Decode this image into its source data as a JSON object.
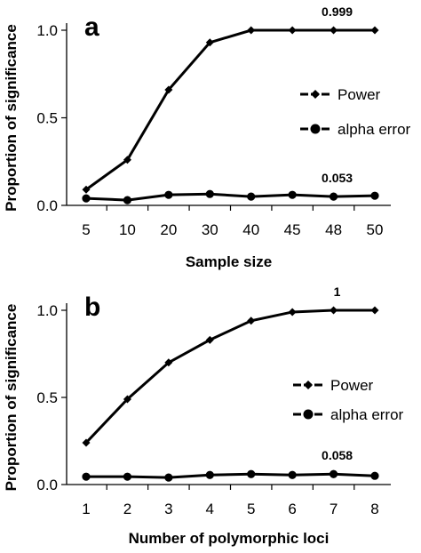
{
  "chart_data": [
    {
      "type": "line",
      "panel_label": "a",
      "xlabel": "Sample size",
      "ylabel": "Proportion of significance",
      "categories": [
        "5",
        "10",
        "20",
        "30",
        "40",
        "45",
        "48",
        "50"
      ],
      "ylim": [
        0,
        1.0
      ],
      "yticks": [
        "0.0",
        "0.5",
        "1.0"
      ],
      "grid": false,
      "legend_position": "right-middle",
      "series": [
        {
          "name": "Power",
          "marker": "diamond",
          "values": [
            0.09,
            0.26,
            0.66,
            0.93,
            1.0,
            1.0,
            1.0,
            1.0
          ]
        },
        {
          "name": "alpha error",
          "marker": "circle",
          "values": [
            0.04,
            0.03,
            0.06,
            0.065,
            0.05,
            0.06,
            0.05,
            0.055
          ]
        }
      ],
      "annotations": [
        {
          "text": "0.999",
          "series": "Power"
        },
        {
          "text": "0.053",
          "series": "alpha error"
        }
      ]
    },
    {
      "type": "line",
      "panel_label": "b",
      "xlabel": "Number of polymorphic loci",
      "ylabel": "Proportion of significance",
      "categories": [
        "1",
        "2",
        "3",
        "4",
        "5",
        "6",
        "7",
        "8"
      ],
      "ylim": [
        0,
        1.0
      ],
      "yticks": [
        "0.0",
        "0.5",
        "1.0"
      ],
      "grid": false,
      "legend_position": "right-middle",
      "series": [
        {
          "name": "Power",
          "marker": "diamond",
          "values": [
            0.24,
            0.49,
            0.7,
            0.83,
            0.94,
            0.99,
            1.0,
            1.0
          ]
        },
        {
          "name": "alpha error",
          "marker": "circle",
          "values": [
            0.045,
            0.045,
            0.04,
            0.055,
            0.06,
            0.055,
            0.06,
            0.05
          ]
        }
      ],
      "annotations": [
        {
          "text": "1",
          "series": "Power"
        },
        {
          "text": "0.058",
          "series": "alpha error"
        }
      ]
    }
  ]
}
